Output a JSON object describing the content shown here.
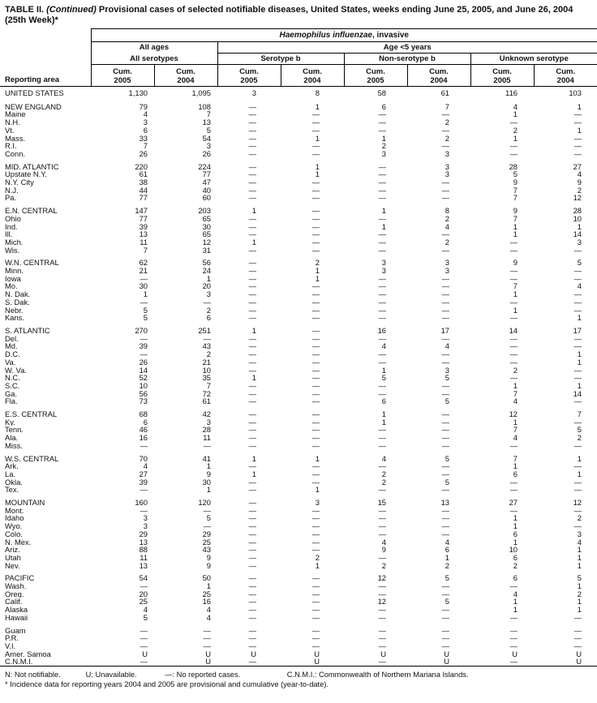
{
  "colors": {
    "background": "#ffffff",
    "text": "#111111",
    "rule": "#000000"
  },
  "title": {
    "bold_prefix": "TABLE II.",
    "continued": " (Continued) ",
    "main": "Provisional cases of selected notifiable diseases, United States, weeks ending June 25, 2005, and June 26, 2004",
    "line2": "(25th Week)*"
  },
  "header": {
    "reporting_area": "Reporting area",
    "disease_italic": "Haemophilus influenzae",
    "disease_suffix": ", invasive",
    "all_ages": "All ages",
    "age_under5": "Age <5 years",
    "serotype_groups": [
      "All serotypes",
      "Serotype b",
      "Non-serotype b",
      "Unknown serotype"
    ],
    "cum_label": "Cum.",
    "col_years": [
      "2005",
      "2004",
      "2005",
      "2004",
      "2005",
      "2004",
      "2005",
      "2004"
    ]
  },
  "sections": [
    {
      "rows": [
        {
          "area": "UNITED STATES",
          "values": [
            "1,130",
            "1,095",
            "3",
            "8",
            "58",
            "61",
            "116",
            "103"
          ]
        }
      ]
    },
    {
      "rows": [
        {
          "area": "NEW ENGLAND",
          "values": [
            "79",
            "108",
            "—",
            "1",
            "6",
            "7",
            "4",
            "1"
          ]
        },
        {
          "area": "Maine",
          "values": [
            "4",
            "7",
            "—",
            "—",
            "—",
            "—",
            "1",
            "—"
          ]
        },
        {
          "area": "N.H.",
          "values": [
            "3",
            "13",
            "—",
            "—",
            "—",
            "2",
            "—",
            "—"
          ]
        },
        {
          "area": "Vt.",
          "values": [
            "6",
            "5",
            "—",
            "—",
            "—",
            "—",
            "2",
            "1"
          ]
        },
        {
          "area": "Mass.",
          "values": [
            "33",
            "54",
            "—",
            "1",
            "1",
            "2",
            "1",
            "—"
          ]
        },
        {
          "area": "R.I.",
          "values": [
            "7",
            "3",
            "—",
            "—",
            "2",
            "—",
            "—",
            "—"
          ]
        },
        {
          "area": "Conn.",
          "values": [
            "26",
            "26",
            "—",
            "—",
            "3",
            "3",
            "—",
            "—"
          ]
        }
      ]
    },
    {
      "rows": [
        {
          "area": "MID. ATLANTIC",
          "values": [
            "220",
            "224",
            "—",
            "1",
            "—",
            "3",
            "28",
            "27"
          ]
        },
        {
          "area": "Upstate N.Y.",
          "values": [
            "61",
            "77",
            "—",
            "1",
            "—",
            "3",
            "5",
            "4"
          ]
        },
        {
          "area": "N.Y. City",
          "values": [
            "38",
            "47",
            "—",
            "—",
            "—",
            "—",
            "9",
            "9"
          ]
        },
        {
          "area": "N.J.",
          "values": [
            "44",
            "40",
            "—",
            "—",
            "—",
            "—",
            "7",
            "2"
          ]
        },
        {
          "area": "Pa.",
          "values": [
            "77",
            "60",
            "—",
            "—",
            "—",
            "—",
            "7",
            "12"
          ]
        }
      ]
    },
    {
      "rows": [
        {
          "area": "E.N. CENTRAL",
          "values": [
            "147",
            "203",
            "1",
            "—",
            "1",
            "8",
            "9",
            "28"
          ]
        },
        {
          "area": "Ohio",
          "values": [
            "77",
            "65",
            "—",
            "—",
            "—",
            "2",
            "7",
            "10"
          ]
        },
        {
          "area": "Ind.",
          "values": [
            "39",
            "30",
            "—",
            "—",
            "1",
            "4",
            "1",
            "1"
          ]
        },
        {
          "area": "Ill.",
          "values": [
            "13",
            "65",
            "—",
            "—",
            "—",
            "—",
            "1",
            "14"
          ]
        },
        {
          "area": "Mich.",
          "values": [
            "11",
            "12",
            "1",
            "—",
            "—",
            "2",
            "—",
            "3"
          ]
        },
        {
          "area": "Wis.",
          "values": [
            "7",
            "31",
            "—",
            "—",
            "—",
            "—",
            "—",
            "—"
          ]
        }
      ]
    },
    {
      "rows": [
        {
          "area": "W.N. CENTRAL",
          "values": [
            "62",
            "56",
            "—",
            "2",
            "3",
            "3",
            "9",
            "5"
          ]
        },
        {
          "area": "Minn.",
          "values": [
            "21",
            "24",
            "—",
            "1",
            "3",
            "3",
            "—",
            "—"
          ]
        },
        {
          "area": "Iowa",
          "values": [
            "—",
            "1",
            "—",
            "1",
            "—",
            "—",
            "—",
            "—"
          ]
        },
        {
          "area": "Mo.",
          "values": [
            "30",
            "20",
            "—",
            "—",
            "—",
            "—",
            "7",
            "4"
          ]
        },
        {
          "area": "N. Dak.",
          "values": [
            "1",
            "3",
            "—",
            "—",
            "—",
            "—",
            "1",
            "—"
          ]
        },
        {
          "area": "S. Dak.",
          "values": [
            "—",
            "—",
            "—",
            "—",
            "—",
            "—",
            "—",
            "—"
          ]
        },
        {
          "area": "Nebr.",
          "values": [
            "5",
            "2",
            "—",
            "—",
            "—",
            "—",
            "1",
            "—"
          ]
        },
        {
          "area": "Kans.",
          "values": [
            "5",
            "6",
            "—",
            "—",
            "—",
            "—",
            "—",
            "1"
          ]
        }
      ]
    },
    {
      "rows": [
        {
          "area": "S. ATLANTIC",
          "values": [
            "270",
            "251",
            "1",
            "—",
            "16",
            "17",
            "14",
            "17"
          ]
        },
        {
          "area": "Del.",
          "values": [
            "—",
            "—",
            "—",
            "—",
            "—",
            "—",
            "—",
            "—"
          ]
        },
        {
          "area": "Md.",
          "values": [
            "39",
            "43",
            "—",
            "—",
            "4",
            "4",
            "—",
            "—"
          ]
        },
        {
          "area": "D.C.",
          "values": [
            "—",
            "2",
            "—",
            "—",
            "—",
            "—",
            "—",
            "1"
          ]
        },
        {
          "area": "Va.",
          "values": [
            "26",
            "21",
            "—",
            "—",
            "—",
            "—",
            "—",
            "1"
          ]
        },
        {
          "area": "W. Va.",
          "values": [
            "14",
            "10",
            "—",
            "—",
            "1",
            "3",
            "2",
            "—"
          ]
        },
        {
          "area": "N.C.",
          "values": [
            "52",
            "35",
            "1",
            "—",
            "5",
            "5",
            "—",
            "—"
          ]
        },
        {
          "area": "S.C.",
          "values": [
            "10",
            "7",
            "—",
            "—",
            "—",
            "—",
            "1",
            "1"
          ]
        },
        {
          "area": "Ga.",
          "values": [
            "56",
            "72",
            "—",
            "—",
            "—",
            "—",
            "7",
            "14"
          ]
        },
        {
          "area": "Fla.",
          "values": [
            "73",
            "61",
            "—",
            "—",
            "6",
            "5",
            "4",
            "—"
          ]
        }
      ]
    },
    {
      "rows": [
        {
          "area": "E.S. CENTRAL",
          "values": [
            "68",
            "42",
            "—",
            "—",
            "1",
            "—",
            "12",
            "7"
          ]
        },
        {
          "area": "Ky.",
          "values": [
            "6",
            "3",
            "—",
            "—",
            "1",
            "—",
            "1",
            "—"
          ]
        },
        {
          "area": "Tenn.",
          "values": [
            "46",
            "28",
            "—",
            "—",
            "—",
            "—",
            "7",
            "5"
          ]
        },
        {
          "area": "Ala.",
          "values": [
            "16",
            "11",
            "—",
            "—",
            "—",
            "—",
            "4",
            "2"
          ]
        },
        {
          "area": "Miss.",
          "values": [
            "—",
            "—",
            "—",
            "—",
            "—",
            "—",
            "—",
            "—"
          ]
        }
      ]
    },
    {
      "rows": [
        {
          "area": "W.S. CENTRAL",
          "values": [
            "70",
            "41",
            "1",
            "1",
            "4",
            "5",
            "7",
            "1"
          ]
        },
        {
          "area": "Ark.",
          "values": [
            "4",
            "1",
            "—",
            "—",
            "—",
            "—",
            "1",
            "—"
          ]
        },
        {
          "area": "La.",
          "values": [
            "27",
            "9",
            "1",
            "—",
            "2",
            "—",
            "6",
            "1"
          ]
        },
        {
          "area": "Okla.",
          "values": [
            "39",
            "30",
            "—",
            "—",
            "2",
            "5",
            "—",
            "—"
          ]
        },
        {
          "area": "Tex.",
          "values": [
            "—",
            "1",
            "—",
            "1",
            "—",
            "—",
            "—",
            "—"
          ]
        }
      ]
    },
    {
      "rows": [
        {
          "area": "MOUNTAIN",
          "values": [
            "160",
            "120",
            "—",
            "3",
            "15",
            "13",
            "27",
            "12"
          ]
        },
        {
          "area": "Mont.",
          "values": [
            "—",
            "—",
            "—",
            "—",
            "—",
            "—",
            "—",
            "—"
          ]
        },
        {
          "area": "Idaho",
          "values": [
            "3",
            "5",
            "—",
            "—",
            "—",
            "—",
            "1",
            "2"
          ]
        },
        {
          "area": "Wyo.",
          "values": [
            "3",
            "—",
            "—",
            "—",
            "—",
            "—",
            "1",
            "—"
          ]
        },
        {
          "area": "Colo.",
          "values": [
            "29",
            "29",
            "—",
            "—",
            "—",
            "—",
            "6",
            "3"
          ]
        },
        {
          "area": "N. Mex.",
          "values": [
            "13",
            "25",
            "—",
            "—",
            "4",
            "4",
            "1",
            "4"
          ]
        },
        {
          "area": "Ariz.",
          "values": [
            "88",
            "43",
            "—",
            "—",
            "9",
            "6",
            "10",
            "1"
          ]
        },
        {
          "area": "Utah",
          "values": [
            "11",
            "9",
            "—",
            "2",
            "—",
            "1",
            "6",
            "1"
          ]
        },
        {
          "area": "Nev.",
          "values": [
            "13",
            "9",
            "—",
            "1",
            "2",
            "2",
            "2",
            "1"
          ]
        }
      ]
    },
    {
      "rows": [
        {
          "area": "PACIFIC",
          "values": [
            "54",
            "50",
            "—",
            "—",
            "12",
            "5",
            "6",
            "5"
          ]
        },
        {
          "area": "Wash.",
          "values": [
            "—",
            "1",
            "—",
            "—",
            "—",
            "—",
            "—",
            "1"
          ]
        },
        {
          "area": "Oreg.",
          "values": [
            "20",
            "25",
            "—",
            "—",
            "—",
            "—",
            "4",
            "2"
          ]
        },
        {
          "area": "Calif.",
          "values": [
            "25",
            "16",
            "—",
            "—",
            "12",
            "5",
            "1",
            "1"
          ]
        },
        {
          "area": "Alaska",
          "values": [
            "4",
            "4",
            "—",
            "—",
            "—",
            "—",
            "1",
            "1"
          ]
        },
        {
          "area": "Hawaii",
          "values": [
            "5",
            "4",
            "—",
            "—",
            "—",
            "—",
            "—",
            "—"
          ]
        }
      ]
    },
    {
      "rows": [
        {
          "area": "Guam",
          "values": [
            "—",
            "—",
            "—",
            "—",
            "—",
            "—",
            "—",
            "—"
          ]
        },
        {
          "area": "P.R.",
          "values": [
            "—",
            "—",
            "—",
            "—",
            "—",
            "—",
            "—",
            "—"
          ]
        },
        {
          "area": "V.I.",
          "values": [
            "—",
            "—",
            "—",
            "—",
            "—",
            "—",
            "—",
            "—"
          ]
        },
        {
          "area": "Amer. Samoa",
          "values": [
            "U",
            "U",
            "U",
            "U",
            "U",
            "U",
            "U",
            "U"
          ]
        },
        {
          "area": "C.N.M.I.",
          "values": [
            "—",
            "U",
            "—",
            "U",
            "—",
            "U",
            "—",
            "U"
          ]
        }
      ]
    }
  ],
  "footnotes": {
    "item1": "N: Not notifiable.",
    "item2": "U: Unavailable.",
    "item3": "—: No reported cases.",
    "item4": "C.N.M.I.: Commonwealth of Northern Mariana Islands.",
    "line2": "* Incidence data for reporting years 2004 and 2005 are provisional and cumulative (year-to-date)."
  }
}
